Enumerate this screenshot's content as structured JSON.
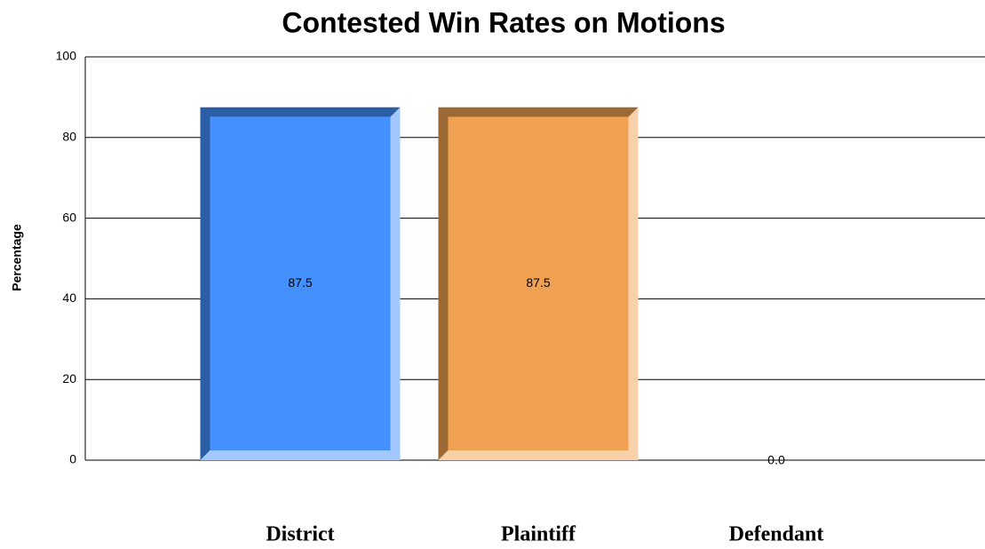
{
  "chart_data": {
    "type": "bar",
    "title": "Contested Win Rates on Motions",
    "y_label": "Percentage",
    "categories": [
      "District",
      "Plaintiff",
      "Defendant"
    ],
    "values": [
      87.5,
      87.5,
      0.0
    ],
    "value_labels": [
      "87.5",
      "87.5",
      "0.0"
    ],
    "colors": [
      "#4490ff",
      "#f0a252",
      "#a0a0a0"
    ],
    "ylim": [
      0,
      100
    ],
    "yticks": [
      0,
      20,
      40,
      60,
      80,
      100
    ],
    "grid": true
  }
}
